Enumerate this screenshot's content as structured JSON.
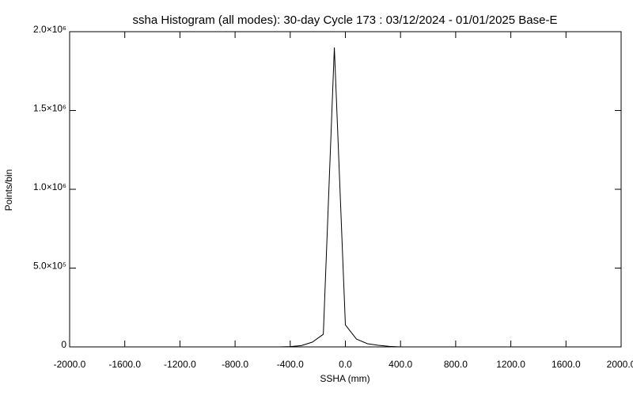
{
  "chart_data": {
    "type": "line",
    "title": "ssha Histogram (all modes): 30-day Cycle 173 : 03/12/2024 - 01/01/2025 Base-E",
    "xlabel": "SSHA (mm)",
    "ylabel": "Points/bin",
    "x": [
      -2000,
      -480,
      -400,
      -320,
      -240,
      -160,
      -80,
      0,
      80,
      160,
      240,
      320,
      400,
      2000
    ],
    "series": [
      {
        "name": "ssha",
        "color": "#000000",
        "values": [
          0,
          0,
          2000,
          8000,
          30000,
          80000,
          1900000,
          140000,
          50000,
          20000,
          10000,
          3000,
          0,
          0
        ]
      }
    ],
    "xlim": [
      -2000,
      2000
    ],
    "xticks": [
      {
        "value": -2000,
        "label": "-2000.0"
      },
      {
        "value": -1600,
        "label": "-1600.0"
      },
      {
        "value": -1200,
        "label": "-1200.0"
      },
      {
        "value": -800,
        "label": "-800.0"
      },
      {
        "value": -400,
        "label": "-400.0"
      },
      {
        "value": 0,
        "label": "0.0"
      },
      {
        "value": 400,
        "label": "400.0"
      },
      {
        "value": 800,
        "label": "800.0"
      },
      {
        "value": 1200,
        "label": "1200.0"
      },
      {
        "value": 1600,
        "label": "1600.0"
      },
      {
        "value": 2000,
        "label": "2000.0"
      }
    ],
    "ylim": [
      0,
      2000000
    ],
    "yticks": [
      0,
      {
        "value": 500000,
        "label": "5.0×10⁵"
      },
      {
        "value": 1000000,
        "label": "1.0×10⁶"
      },
      {
        "value": 1500000,
        "label": "1.5×10⁶"
      },
      {
        "value": 2000000,
        "label": "2.0×10⁶"
      }
    ]
  }
}
